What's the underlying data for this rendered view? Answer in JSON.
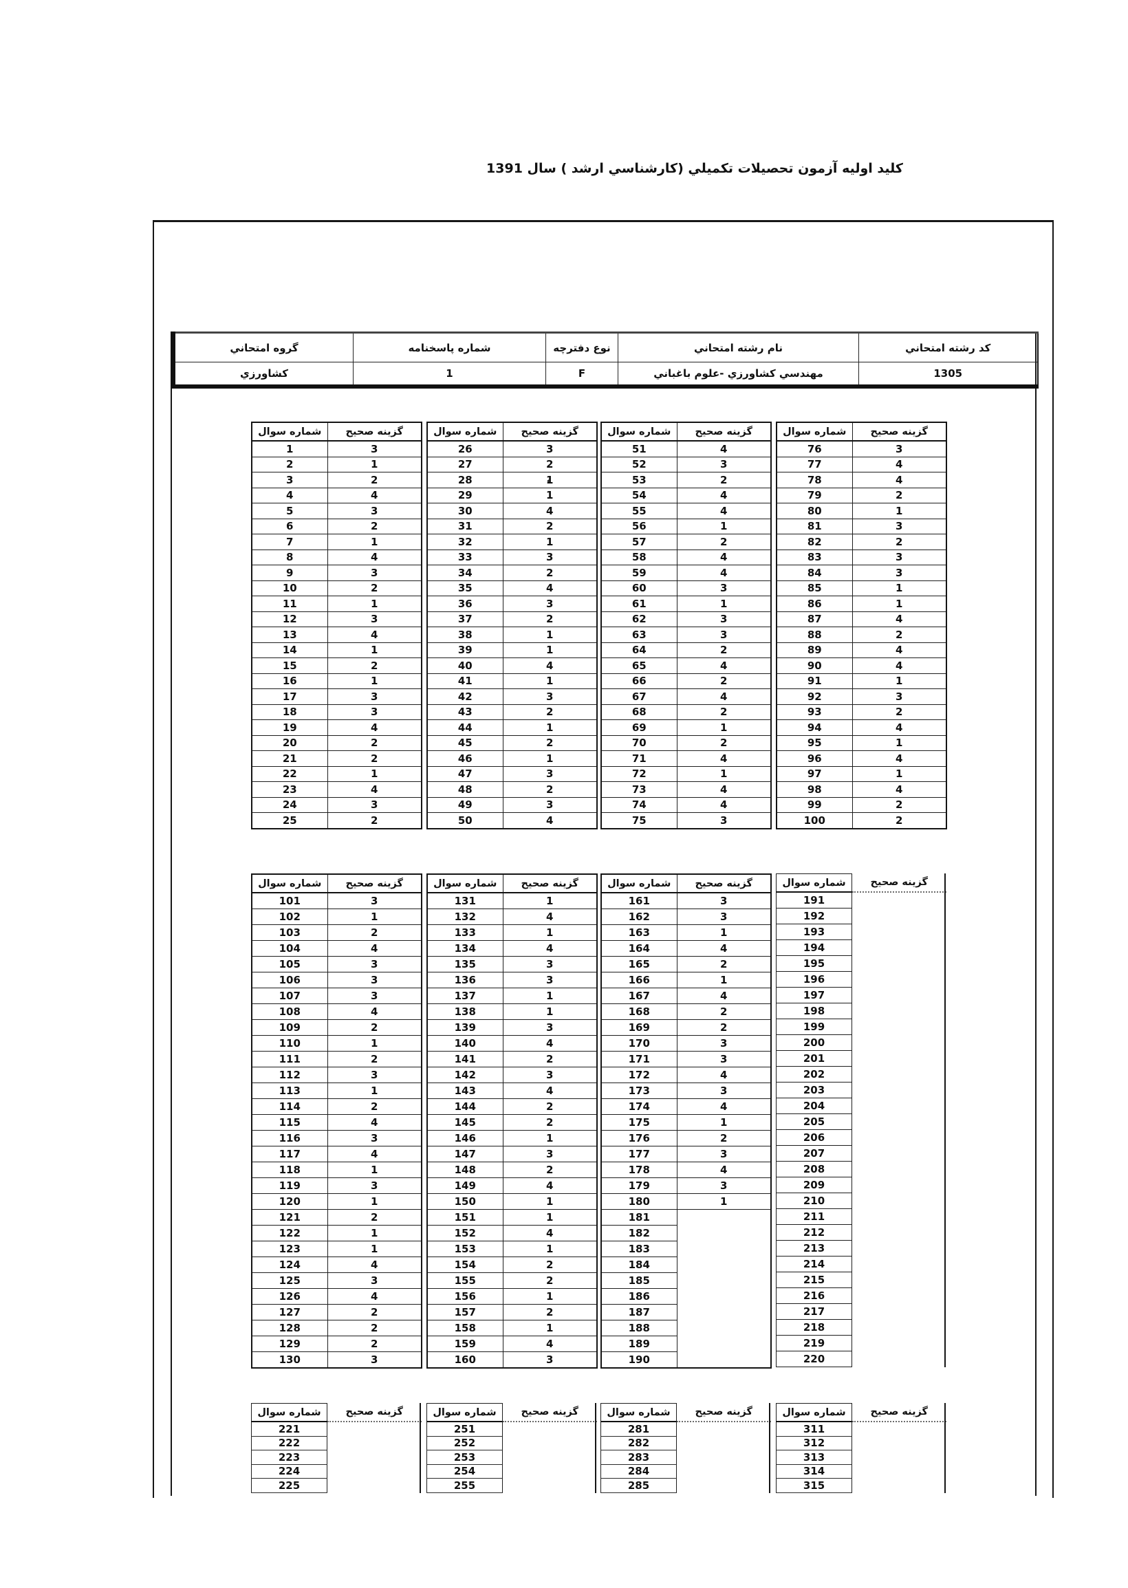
{
  "page_title": "كليد اوليه آزمون تحصيلات تكميلي (كارشناسي ارشد ) سال 1391",
  "colors": {
    "paper": "#ffffff",
    "ink": "#111111"
  },
  "info_table": {
    "columns": [
      {
        "label": "كد رشته امتحاني",
        "value": "1305"
      },
      {
        "label": "نام رشته امتحاني",
        "value": "مهندسي كشاورزي -علوم باغباني"
      },
      {
        "label": "نوع دفترچه",
        "value": "F"
      },
      {
        "label": "شماره پاسخنامه",
        "value": "1"
      },
      {
        "label": "گروه امتحاني",
        "value": "كشاورزي"
      }
    ]
  },
  "answer_tables": {
    "question_header": "شماره سوال",
    "answer_header": "گزينه صحيح",
    "blocks": [
      {
        "pairs": [
          {
            "start": 1,
            "answers": [
              "3",
              "1",
              "2",
              "4",
              "3",
              "2",
              "1",
              "4",
              "3",
              "2",
              "1",
              "3",
              "4",
              "1",
              "2",
              "1",
              "3",
              "3",
              "4",
              "2",
              "2",
              "1",
              "4",
              "3",
              "2"
            ]
          },
          {
            "start": 26,
            "answers": [
              "3",
              "2",
              "1",
              "1",
              "4",
              "2",
              "1",
              "3",
              "2",
              "4",
              "3",
              "2",
              "1",
              "1",
              "4",
              "1",
              "3",
              "2",
              "1",
              "2",
              "1",
              "3",
              "2",
              "3",
              "4"
            ]
          },
          {
            "start": 51,
            "answers": [
              "4",
              "3",
              "2",
              "4",
              "4",
              "1",
              "2",
              "4",
              "4",
              "3",
              "1",
              "3",
              "3",
              "2",
              "4",
              "2",
              "4",
              "2",
              "1",
              "2",
              "4",
              "1",
              "4",
              "4",
              "3"
            ]
          },
          {
            "start": 76,
            "answers": [
              "3",
              "4",
              "4",
              "2",
              "1",
              "3",
              "2",
              "3",
              "3",
              "1",
              "1",
              "4",
              "2",
              "4",
              "4",
              "1",
              "3",
              "2",
              "4",
              "1",
              "4",
              "1",
              "4",
              "2",
              "2"
            ]
          }
        ]
      },
      {
        "pairs": [
          {
            "start": 101,
            "answers": [
              "3",
              "1",
              "2",
              "4",
              "3",
              "3",
              "3",
              "4",
              "2",
              "1",
              "2",
              "3",
              "1",
              "2",
              "4",
              "3",
              "4",
              "1",
              "3",
              "1",
              "2",
              "1",
              "1",
              "4",
              "3",
              "4",
              "2",
              "2",
              "2",
              "3"
            ]
          },
          {
            "start": 131,
            "answers": [
              "1",
              "4",
              "1",
              "4",
              "3",
              "3",
              "1",
              "1",
              "3",
              "4",
              "2",
              "3",
              "4",
              "2",
              "2",
              "1",
              "3",
              "2",
              "4",
              "1",
              "1",
              "4",
              "1",
              "2",
              "2",
              "1",
              "2",
              "1",
              "4",
              "3"
            ]
          },
          {
            "start": 161,
            "answers": [
              "3",
              "3",
              "1",
              "4",
              "2",
              "1",
              "4",
              "2",
              "2",
              "3",
              "3",
              "4",
              "3",
              "4",
              "1",
              "2",
              "3",
              "4",
              "3",
              "1",
              "",
              "",
              "",
              "",
              "",
              "",
              "",
              "",
              "",
              ""
            ]
          },
          {
            "start": 191,
            "answers": [
              "",
              "",
              "",
              "",
              "",
              "",
              "",
              "",
              "",
              "",
              "",
              "",
              "",
              "",
              "",
              "",
              "",
              "",
              "",
              "",
              "",
              "",
              "",
              "",
              "",
              "",
              "",
              "",
              "",
              ""
            ],
            "open_column": true
          }
        ]
      },
      {
        "pairs": [
          {
            "start": 221,
            "answers": [
              "",
              "",
              "",
              "",
              ""
            ],
            "open_column": true,
            "clipped": true
          },
          {
            "start": 251,
            "answers": [
              "",
              "",
              "",
              "",
              ""
            ],
            "open_column": true,
            "clipped": true
          },
          {
            "start": 281,
            "answers": [
              "",
              "",
              "",
              "",
              ""
            ],
            "open_column": true,
            "clipped": true
          },
          {
            "start": 311,
            "answers": [
              "",
              "",
              "",
              "",
              ""
            ],
            "open_column": true,
            "clipped": true
          }
        ]
      }
    ]
  },
  "artifacts": [
    {
      "text": "ء"
    }
  ]
}
